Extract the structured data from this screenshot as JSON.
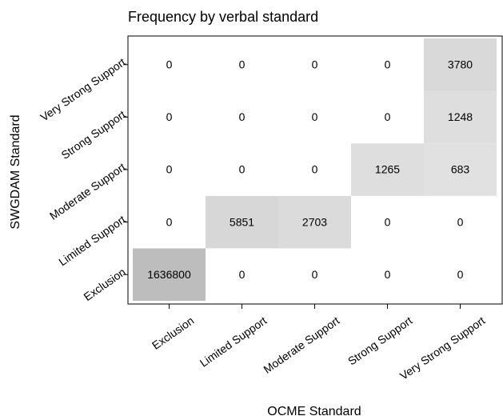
{
  "chart_data": {
    "type": "heatmap",
    "title": "Frequency by verbal standard",
    "x_label": "OCME Standard",
    "y_label": "SWGDAM Standard",
    "x_categories": [
      "Exclusion",
      "Limited Support",
      "Moderate Support",
      "Strong Support",
      "Very Strong Support"
    ],
    "y_categories": [
      "Exclusion",
      "Limited Support",
      "Moderate Support",
      "Strong Support",
      "Very Strong Support"
    ],
    "values": [
      [
        1636800,
        0,
        0,
        0,
        0
      ],
      [
        0,
        5851,
        2703,
        0,
        0
      ],
      [
        0,
        0,
        0,
        1265,
        683
      ],
      [
        0,
        0,
        0,
        0,
        1248
      ],
      [
        0,
        0,
        0,
        0,
        3780
      ]
    ],
    "colormap": [
      "#ffffff",
      "#bdbdbd"
    ],
    "log_color": true
  }
}
